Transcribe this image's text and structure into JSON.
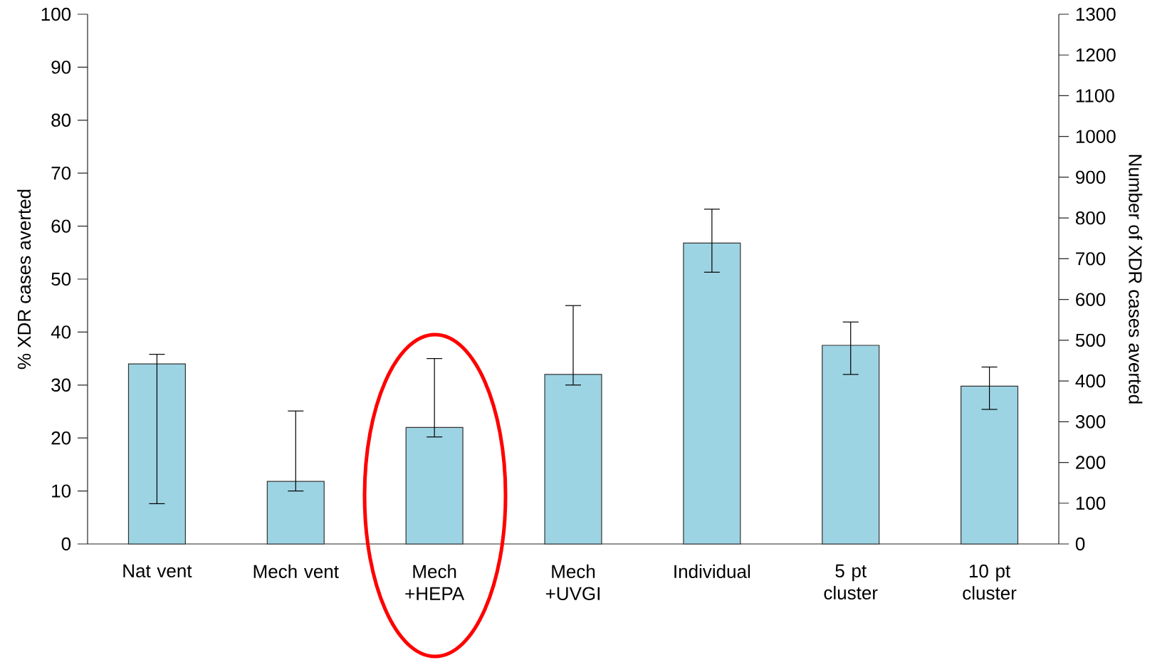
{
  "chart_data": {
    "type": "bar",
    "ylabel": "% XDR cases averted",
    "y2label": "Number of XDR cases averted",
    "categories": [
      "Nat vent",
      "Mech vent",
      "Mech +HEPA",
      "Mech +UVGI",
      "Individual",
      "5 pt cluster",
      "10 pt cluster"
    ],
    "values": [
      34.0,
      11.8,
      22.0,
      32.0,
      56.8,
      37.5,
      29.8
    ],
    "errors": [
      [
        7.6,
        35.8
      ],
      [
        10.0,
        25.1
      ],
      [
        20.2,
        35.0
      ],
      [
        30.0,
        45.0
      ],
      [
        51.3,
        63.2
      ],
      [
        32.0,
        41.9
      ],
      [
        25.4,
        33.4
      ]
    ],
    "color": "#9dd4e4",
    "ylim": [
      0,
      100
    ],
    "yticks": [
      0,
      10,
      20,
      30,
      40,
      50,
      60,
      70,
      80,
      90,
      100
    ],
    "y2lim": [
      0,
      1300
    ],
    "y2ticks": [
      0,
      100,
      200,
      300,
      400,
      500,
      600,
      700,
      800,
      900,
      1000,
      1100,
      1200,
      1300
    ],
    "grid": false
  }
}
